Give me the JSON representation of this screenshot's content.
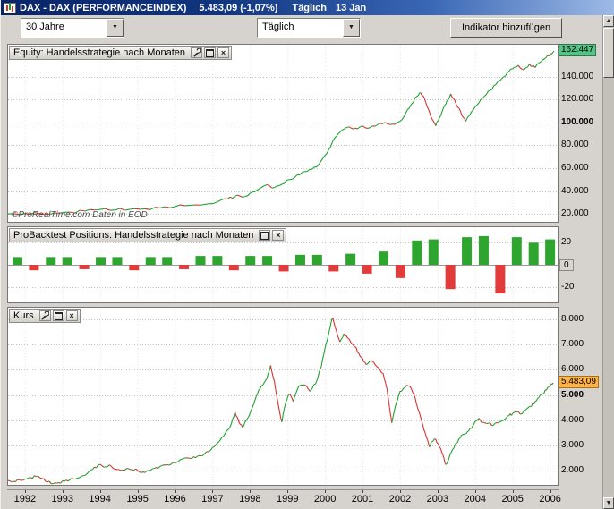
{
  "titlebar": {
    "title": "DAX - DAX (PERFORMANCEINDEX)",
    "value": "5.483,09 (-1,07%)",
    "period": "Täglich",
    "date": "13 Jan"
  },
  "toolbar": {
    "range_value": "30 Jahre",
    "period_value": "Täglich",
    "add_indicator_label": "Indikator hinzufügen"
  },
  "panels": {
    "equity": {
      "title": "Equity: Handelsstrategie nach Monaten",
      "copyright": "©ProRealTime.com Daten in EOD"
    },
    "positions": {
      "title": "ProBacktest Positions: Handelsstrategie nach Monaten"
    },
    "kurs": {
      "title": "Kurs"
    }
  },
  "icons": {
    "combo_arrow": "▼",
    "close": "×",
    "scroll_up": "▲",
    "scroll_down": "▼"
  },
  "colors": {
    "up": "#1FA12F",
    "down": "#D93030",
    "bar_up": "#2EA52E",
    "bar_down": "#E23B3B",
    "equity_label_bg": "#56C487",
    "kurs_label_bg": "#FFB347",
    "titlebar_start": "#0a246a",
    "titlebar_end": "#9db9e6"
  },
  "xaxis": {
    "years": [
      1992,
      1993,
      1994,
      1995,
      1996,
      1997,
      1998,
      1999,
      2000,
      2001,
      2002,
      2003,
      2004,
      2005,
      2006
    ]
  },
  "chart_data": [
    {
      "id": "equity",
      "type": "line",
      "title": "Equity: Handelsstrategie nach Monaten",
      "xlim": [
        1991.55,
        2006.2
      ],
      "ylim": [
        13000,
        168000
      ],
      "x": [
        1991.55,
        1992.0,
        1992.4,
        1992.8,
        1993.2,
        1993.6,
        1994.0,
        1994.4,
        1994.8,
        1995.2,
        1995.6,
        1996.0,
        1996.4,
        1996.8,
        1997.1,
        1997.4,
        1997.6,
        1997.8,
        1998.0,
        1998.2,
        1998.45,
        1998.65,
        1998.85,
        1999.05,
        1999.25,
        1999.45,
        1999.65,
        1999.85,
        2000.05,
        2000.2,
        2000.35,
        2000.5,
        2000.65,
        2000.8,
        2001.0,
        2001.2,
        2001.4,
        2001.6,
        2001.8,
        2002.0,
        2002.15,
        2002.3,
        2002.45,
        2002.55,
        2002.65,
        2002.75,
        2002.85,
        2002.95,
        2003.05,
        2003.15,
        2003.25,
        2003.35,
        2003.45,
        2003.55,
        2003.65,
        2003.75,
        2003.85,
        2003.95,
        2004.1,
        2004.25,
        2004.4,
        2004.55,
        2004.7,
        2004.85,
        2005.0,
        2005.15,
        2005.3,
        2005.45,
        2005.6,
        2005.75,
        2005.9,
        2006.0,
        2006.1
      ],
      "values": [
        20000,
        20400,
        20100,
        20800,
        21500,
        22500,
        23800,
        23300,
        24000,
        24400,
        25200,
        26300,
        27400,
        28300,
        30000,
        33000,
        35500,
        34500,
        38000,
        41000,
        45500,
        43000,
        46000,
        50000,
        54000,
        57000,
        59000,
        64000,
        73000,
        83000,
        90000,
        94000,
        96000,
        95000,
        97000,
        95500,
        98000,
        100000,
        98500,
        101000,
        108000,
        116000,
        123000,
        126000,
        121000,
        112000,
        103000,
        97000,
        104000,
        112000,
        119000,
        125000,
        120000,
        113000,
        106000,
        101000,
        106000,
        111000,
        117000,
        123000,
        128000,
        133000,
        138000,
        143000,
        147000,
        150000,
        146000,
        151000,
        148000,
        153000,
        157000,
        160000,
        162447
      ],
      "yticks": [
        {
          "v": 140000,
          "label": "140.000"
        },
        {
          "v": 120000,
          "label": "120.000"
        },
        {
          "v": 100000,
          "label": "100.000",
          "bold": true
        },
        {
          "v": 80000,
          "label": "80.000"
        },
        {
          "v": 60000,
          "label": "60.000"
        },
        {
          "v": 40000,
          "label": "40.000"
        },
        {
          "v": 20000,
          "label": "20.000"
        }
      ],
      "last_label": {
        "v": 162447,
        "label": "162.447",
        "cls": "green"
      }
    },
    {
      "id": "positions",
      "type": "bar",
      "title": "ProBacktest Positions: Handelsstrategie nach Monaten",
      "xlim": [
        1991.55,
        2006.2
      ],
      "ylim": [
        -34,
        34
      ],
      "x": [
        1991.8,
        1992.24,
        1992.69,
        1993.13,
        1993.58,
        1994.02,
        1994.46,
        1994.91,
        1995.35,
        1995.79,
        1996.24,
        1996.68,
        1997.13,
        1997.57,
        1998.01,
        1998.46,
        1998.9,
        1999.34,
        1999.79,
        2000.23,
        2000.68,
        2001.12,
        2001.56,
        2002.01,
        2002.45,
        2002.89,
        2003.34,
        2003.78,
        2004.23,
        2004.67,
        2005.11,
        2005.56,
        2006.0
      ],
      "values": [
        7,
        -5,
        7,
        7,
        -4,
        7,
        7,
        -5,
        7,
        7,
        -4,
        8,
        8,
        -5,
        8,
        8,
        -6,
        9,
        9,
        -6,
        10,
        -8,
        12,
        -12,
        22,
        23,
        -22,
        25,
        26,
        -26,
        25,
        20,
        23
      ],
      "yticks": [
        {
          "v": 20,
          "label": "20"
        },
        {
          "v": 0,
          "label": "0",
          "box": true
        },
        {
          "v": -20,
          "label": "-20"
        }
      ]
    },
    {
      "id": "kurs",
      "type": "line",
      "title": "Kurs",
      "xlim": [
        1991.55,
        2006.2
      ],
      "ylim": [
        1450,
        8450
      ],
      "x": [
        1991.55,
        1991.7,
        1991.85,
        1992.0,
        1992.15,
        1992.3,
        1992.45,
        1992.6,
        1992.75,
        1992.9,
        1993.05,
        1993.2,
        1993.35,
        1993.5,
        1993.65,
        1993.8,
        1993.95,
        1994.1,
        1994.25,
        1994.4,
        1994.55,
        1994.7,
        1994.85,
        1995.0,
        1995.15,
        1995.3,
        1995.45,
        1995.6,
        1995.75,
        1995.9,
        1996.05,
        1996.2,
        1996.35,
        1996.5,
        1996.65,
        1996.8,
        1996.95,
        1997.1,
        1997.25,
        1997.4,
        1997.5,
        1997.6,
        1997.7,
        1997.8,
        1997.9,
        1998.0,
        1998.1,
        1998.2,
        1998.3,
        1998.45,
        1998.55,
        1998.65,
        1998.75,
        1998.85,
        1998.95,
        1999.05,
        1999.15,
        1999.3,
        1999.45,
        1999.6,
        1999.75,
        1999.9,
        2000.0,
        2000.1,
        2000.2,
        2000.3,
        2000.4,
        2000.5,
        2000.6,
        2000.7,
        2000.8,
        2000.9,
        2001.0,
        2001.1,
        2001.25,
        2001.4,
        2001.55,
        2001.65,
        2001.72,
        2001.78,
        2001.9,
        2002.0,
        2002.1,
        2002.2,
        2002.3,
        2002.4,
        2002.5,
        2002.6,
        2002.7,
        2002.78,
        2002.85,
        2002.95,
        2003.05,
        2003.15,
        2003.22,
        2003.3,
        2003.4,
        2003.5,
        2003.6,
        2003.7,
        2003.8,
        2003.9,
        2004.0,
        2004.1,
        2004.2,
        2004.35,
        2004.5,
        2004.6,
        2004.7,
        2004.8,
        2004.9,
        2005.0,
        2005.1,
        2005.2,
        2005.35,
        2005.5,
        2005.6,
        2005.7,
        2005.8,
        2005.9,
        2006.0,
        2006.08
      ],
      "values": [
        1620,
        1590,
        1640,
        1680,
        1740,
        1780,
        1700,
        1560,
        1500,
        1540,
        1590,
        1650,
        1680,
        1780,
        1880,
        2050,
        2230,
        2150,
        2240,
        2070,
        2020,
        2090,
        2060,
        2030,
        1960,
        2020,
        2100,
        2180,
        2230,
        2270,
        2340,
        2470,
        2510,
        2560,
        2610,
        2700,
        2820,
        3060,
        3330,
        3620,
        3850,
        4330,
        3950,
        3720,
        4000,
        4270,
        4650,
        5050,
        5350,
        5650,
        6170,
        5550,
        4650,
        3930,
        4700,
        5050,
        4750,
        5350,
        5400,
        5150,
        5450,
        6120,
        6850,
        7450,
        8060,
        7550,
        7100,
        7420,
        7250,
        7050,
        6900,
        6650,
        6450,
        6200,
        6350,
        6100,
        5850,
        5250,
        4500,
        3900,
        4700,
        5150,
        5280,
        5380,
        5250,
        4900,
        4350,
        3850,
        3350,
        2950,
        3150,
        3250,
        2950,
        2600,
        2250,
        2480,
        2850,
        3100,
        3300,
        3450,
        3550,
        3680,
        3960,
        4080,
        3920,
        3880,
        3820,
        3900,
        3970,
        4050,
        4180,
        4270,
        4320,
        4250,
        4420,
        4550,
        4750,
        4900,
        5050,
        5190,
        5380,
        5483
      ],
      "yticks": [
        {
          "v": 8000,
          "label": "8.000"
        },
        {
          "v": 7000,
          "label": "7.000"
        },
        {
          "v": 6000,
          "label": "6.000"
        },
        {
          "v": 5000,
          "label": "5.000",
          "bold": true
        },
        {
          "v": 4000,
          "label": "4.000"
        },
        {
          "v": 3000,
          "label": "3.000"
        },
        {
          "v": 2000,
          "label": "2.000"
        }
      ],
      "last_label": {
        "v": 5483.09,
        "label": "5.483,09",
        "cls": "orange"
      }
    }
  ]
}
